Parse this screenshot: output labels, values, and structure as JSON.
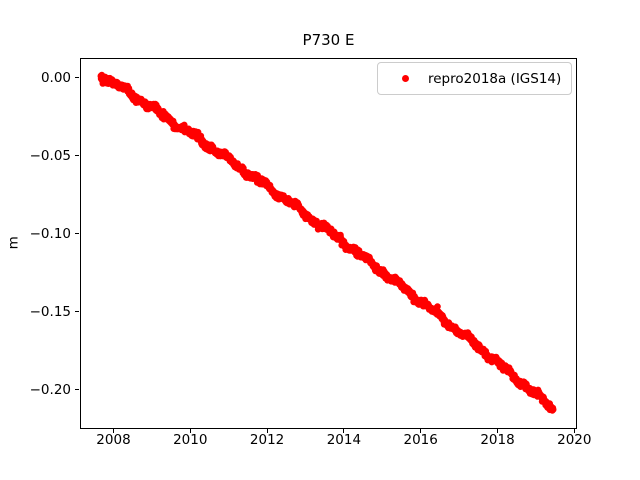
{
  "figure": {
    "background": "#ffffff",
    "text_color": "#000000"
  },
  "chart_data": {
    "type": "scatter",
    "title": "P730 E",
    "xlabel": "",
    "ylabel": "m",
    "grid": false,
    "xlim": [
      2007.128,
      2020.044
    ],
    "ylim": [
      -0.2244,
      0.0128
    ],
    "xticks": {
      "values": [
        2008,
        2010,
        2012,
        2014,
        2016,
        2018,
        2020
      ],
      "labels": [
        "2008",
        "2010",
        "2012",
        "2014",
        "2016",
        "2018",
        "2020"
      ]
    },
    "yticks": {
      "values": [
        0.0,
        -0.05,
        -0.1,
        -0.15,
        -0.2
      ],
      "labels": [
        "0.00",
        "−0.05",
        "−0.10",
        "−0.15",
        "−0.20"
      ]
    },
    "legend": {
      "position": "upper-right",
      "border_color": "#cccccc",
      "background": "rgba(255,255,255,0.8)",
      "entries": [
        {
          "label": "repro2018a (IGS14)",
          "marker": "dot",
          "color": "#ff0000"
        }
      ]
    },
    "series": [
      {
        "name": "repro2018a (IGS14)",
        "color": "#ff0000",
        "marker": "circle",
        "marker_radius_px": 3.3,
        "n_points": 1800,
        "t_start": 2007.67,
        "t_end": 2019.45,
        "trend_poly": {
          "a": 0.002,
          "b": -0.01559,
          "c": -0.00022
        },
        "noise_sigma_m": 0.001,
        "wiggles": [
          {
            "amp": 0.0012,
            "period_yr": 0.9
          },
          {
            "amp": 0.0008,
            "period_yr": 0.37
          }
        ],
        "seed": 42
      }
    ],
    "sampled_values": {
      "years": [
        2008,
        2009,
        2010,
        2011,
        2012,
        2013,
        2014,
        2015,
        2016,
        2017,
        2018,
        2019,
        2019.45
      ],
      "values_m": [
        -0.003,
        -0.019,
        -0.036,
        -0.052,
        -0.07,
        -0.087,
        -0.105,
        -0.124,
        -0.143,
        -0.163,
        -0.182,
        -0.203,
        -0.212
      ]
    }
  }
}
